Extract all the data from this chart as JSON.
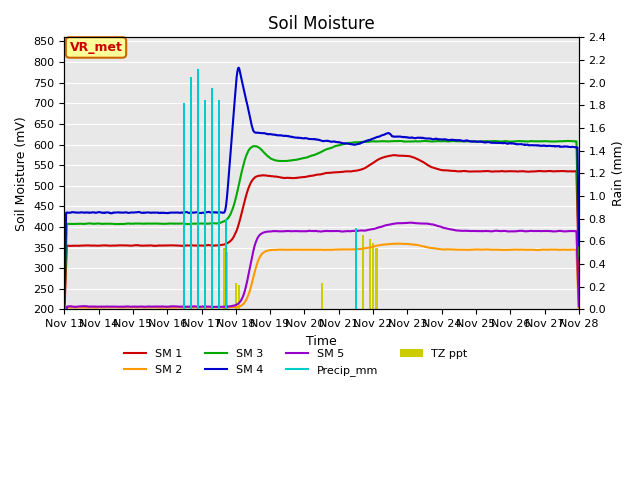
{
  "title": "Soil Moisture",
  "xlabel": "Time",
  "ylabel_left": "Soil Moisture (mV)",
  "ylabel_right": "Rain (mm)",
  "ylim_left": [
    200,
    860
  ],
  "ylim_right": [
    0.0,
    2.4
  ],
  "yticks_left": [
    200,
    250,
    300,
    350,
    400,
    450,
    500,
    550,
    600,
    650,
    700,
    750,
    800,
    850
  ],
  "yticks_right": [
    0.0,
    0.2,
    0.4,
    0.6,
    0.8,
    1.0,
    1.2,
    1.4,
    1.6,
    1.8,
    2.0,
    2.2,
    2.4
  ],
  "x_labels": [
    "Nov 13",
    "Nov 14",
    "Nov 15",
    "Nov 16",
    "Nov 17",
    "Nov 18",
    "Nov 19",
    "Nov 20",
    "Nov 21",
    "Nov 22",
    "Nov 23",
    "Nov 24",
    "Nov 25",
    "Nov 26",
    "Nov 27",
    "Nov 28"
  ],
  "bg_color": "#e8e8e8",
  "colors": {
    "SM1": "#cc0000",
    "SM2": "#ff9900",
    "SM3": "#00aa00",
    "SM4": "#0000cc",
    "SM5": "#9900cc",
    "Precip_mm": "#00cccc",
    "TZ_ppt": "#cccc00"
  },
  "annotation_text": "VR_met",
  "annotation_color": "#cc0000",
  "annotation_bg": "#ffff99",
  "annotation_border": "#cc6600"
}
